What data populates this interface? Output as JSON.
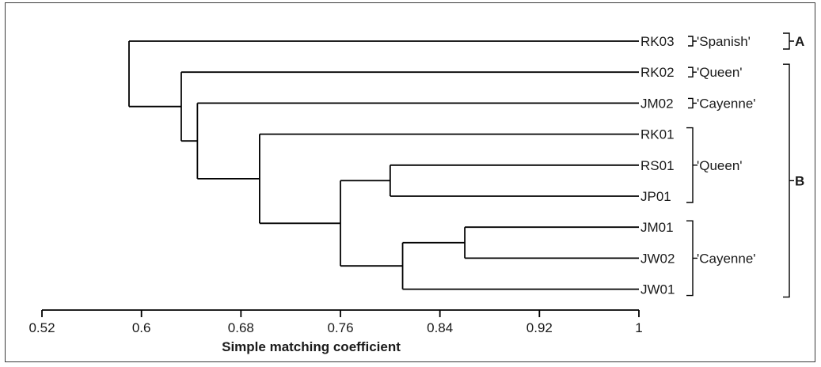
{
  "dendrogram": {
    "leaves": [
      "RK03",
      "RK02",
      "JM02",
      "RK01",
      "RS01",
      "JP01",
      "JM01",
      "JW02",
      "JW01"
    ],
    "merges": [
      {
        "a": "JM01",
        "b": "JW02",
        "height": 0.86
      },
      {
        "a": "RS01",
        "b": "JP01",
        "height": 0.8
      },
      {
        "a": "JM01+JW02",
        "b": "JW01",
        "height": 0.81
      },
      {
        "a": "RS01+JP01",
        "b": "JM01+JW02+JW01",
        "height": 0.76
      },
      {
        "a": "RK01",
        "b": "RS01..JW01",
        "height": 0.695
      },
      {
        "a": "JM02",
        "b": "RK01..JW01",
        "height": 0.645
      },
      {
        "a": "RK02",
        "b": "JM02..JW01",
        "height": 0.632
      },
      {
        "a": "RK03",
        "b": "RK02..JW01",
        "height": 0.59
      }
    ]
  },
  "groups": [
    {
      "label": "'Spanish'",
      "leaves": [
        "RK03"
      ]
    },
    {
      "label": "'Queen'",
      "leaves": [
        "RK02"
      ]
    },
    {
      "label": "'Cayenne'",
      "leaves": [
        "JM02"
      ]
    },
    {
      "label": "'Queen'",
      "leaves": [
        "RK01",
        "RS01",
        "JP01"
      ]
    },
    {
      "label": "'Cayenne'",
      "leaves": [
        "JM01",
        "JW02",
        "JW01"
      ]
    }
  ],
  "clusters": [
    {
      "label": "A",
      "leaves": [
        "RK03"
      ]
    },
    {
      "label": "B",
      "leaves": [
        "RK02",
        "JM02",
        "RK01",
        "RS01",
        "JP01",
        "JM01",
        "JW02",
        "JW01"
      ]
    }
  ],
  "axis": {
    "title": "Simple matching coefficient",
    "ticks": [
      "0.52",
      "0.6",
      "0.68",
      "0.76",
      "0.84",
      "0.92",
      "1"
    ],
    "min": 0.52,
    "max": 1.0
  }
}
